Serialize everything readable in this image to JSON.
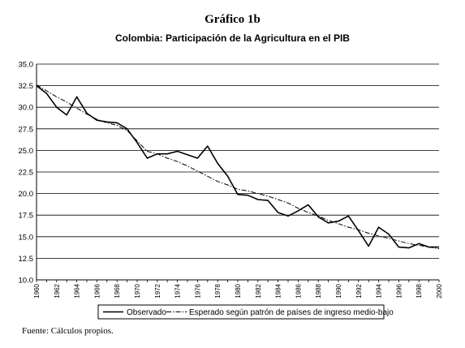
{
  "figure": {
    "supertitle": "Gráfico 1b",
    "source": "Fuente: Cálculos propios."
  },
  "chart_data": {
    "type": "line",
    "title": "Colombia: Participación de la Agricultura en el PIB",
    "xlabel": "",
    "ylabel": "",
    "ylim": [
      10.0,
      35.0
    ],
    "yticks": [
      "10.0",
      "12.5",
      "15.0",
      "17.5",
      "20.0",
      "22.5",
      "25.0",
      "27.5",
      "30.0",
      "32.5",
      "35.0"
    ],
    "x": [
      1960,
      1961,
      1962,
      1963,
      1964,
      1965,
      1966,
      1967,
      1968,
      1969,
      1970,
      1971,
      1972,
      1973,
      1974,
      1975,
      1976,
      1977,
      1978,
      1979,
      1980,
      1981,
      1982,
      1983,
      1984,
      1985,
      1986,
      1987,
      1988,
      1989,
      1990,
      1991,
      1992,
      1993,
      1994,
      1995,
      1996,
      1997,
      1998,
      1999,
      2000
    ],
    "xtick_labels": [
      "1960",
      "1962",
      "1964",
      "1966",
      "1968",
      "1970",
      "1972",
      "1974",
      "1976",
      "1978",
      "1980",
      "1982",
      "1984",
      "1986",
      "1988",
      "1990",
      "1992",
      "1994",
      "1996",
      "1998",
      "2000"
    ],
    "grid": true,
    "legend_position": "bottom",
    "series": [
      {
        "name": "Observado",
        "style": "solid",
        "color": "#000000",
        "values": [
          32.5,
          31.6,
          30.0,
          29.1,
          31.2,
          29.3,
          28.5,
          28.3,
          28.2,
          27.5,
          25.9,
          24.1,
          24.6,
          24.6,
          24.9,
          24.5,
          24.1,
          25.5,
          23.5,
          22.0,
          19.9,
          19.8,
          19.3,
          19.2,
          17.8,
          17.4,
          18.0,
          18.7,
          17.3,
          16.6,
          16.8,
          17.4,
          15.7,
          13.9,
          16.1,
          15.3,
          13.8,
          13.7,
          14.2,
          13.8,
          13.8
        ]
      },
      {
        "name": "Esperado  según patrón de países de ingreso medio-bajo",
        "style": "dashdot",
        "color": "#000000",
        "values": [
          32.6,
          31.9,
          31.2,
          30.6,
          29.9,
          29.2,
          28.6,
          28.2,
          27.9,
          27.3,
          26.1,
          24.9,
          24.6,
          24.1,
          23.7,
          23.2,
          22.6,
          22.0,
          21.4,
          21.0,
          20.5,
          20.3,
          20.0,
          19.7,
          19.3,
          18.9,
          18.3,
          17.8,
          17.4,
          16.9,
          16.5,
          16.1,
          15.8,
          15.4,
          15.1,
          14.8,
          14.5,
          14.2,
          14.0,
          13.8,
          13.6
        ]
      }
    ]
  }
}
